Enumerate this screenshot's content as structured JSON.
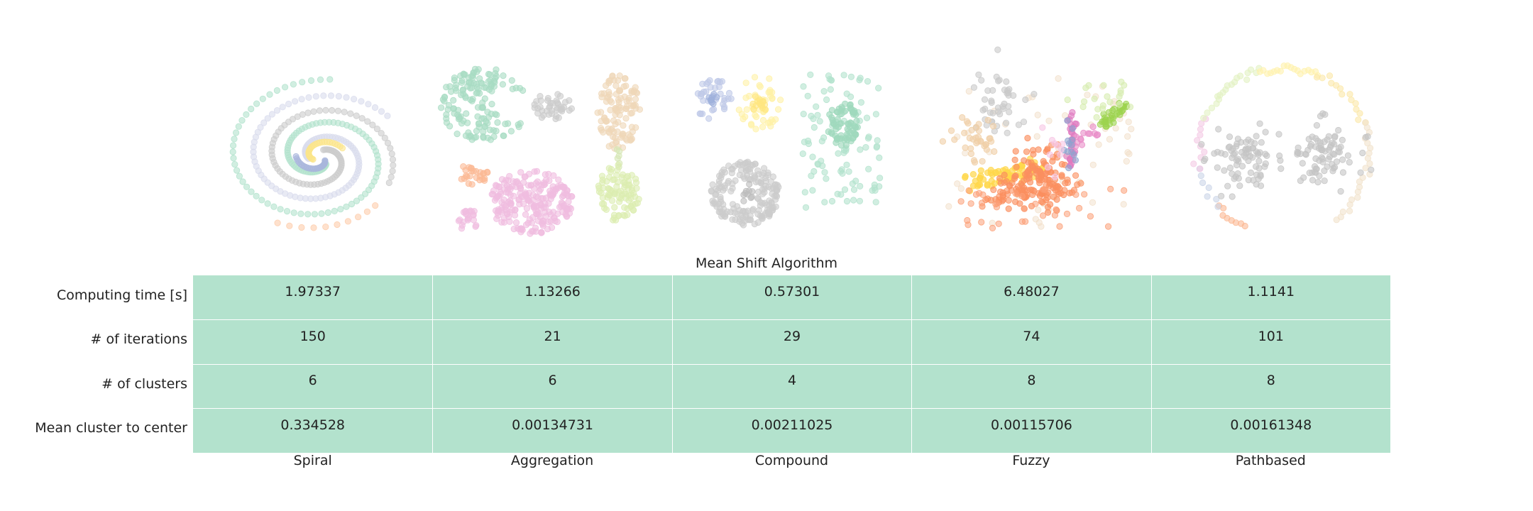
{
  "chart_data": {
    "type": "table",
    "title": "Mean Shift Algorithm",
    "columns": [
      "Spiral",
      "Aggregation",
      "Compound",
      "Fuzzy",
      "Pathbased"
    ],
    "rows": [
      {
        "label": "Computing time [s]",
        "values": [
          "1.97337",
          "1.13266",
          "0.57301",
          "6.48027",
          "1.1141"
        ]
      },
      {
        "label": "# of iterations",
        "values": [
          "150",
          "21",
          "29",
          "74",
          "101"
        ]
      },
      {
        "label": "# of clusters",
        "values": [
          "6",
          "6",
          "4",
          "8",
          "8"
        ]
      },
      {
        "label": "Mean cluster to center",
        "values": [
          "0.334528",
          "0.00134731",
          "0.00211025",
          "0.00115706",
          "0.00161348"
        ]
      }
    ],
    "cell_color": "#b3e2cd",
    "scatter_panels": [
      {
        "dataset": "Spiral",
        "n_clusters": 6
      },
      {
        "dataset": "Aggregation",
        "n_clusters": 6
      },
      {
        "dataset": "Compound",
        "n_clusters": 4
      },
      {
        "dataset": "Fuzzy",
        "n_clusters": 8
      },
      {
        "dataset": "Pathbased",
        "n_clusters": 8
      }
    ],
    "palette": [
      "#b3e2cd",
      "#fdcdac",
      "#cbd5e8",
      "#f4cae4",
      "#e6f5c9",
      "#fff2ae",
      "#f1e2cc",
      "#cccccc",
      "#8da0cb",
      "#fc8d62",
      "#a6d854",
      "#e78ac3",
      "#ffd92f"
    ]
  }
}
